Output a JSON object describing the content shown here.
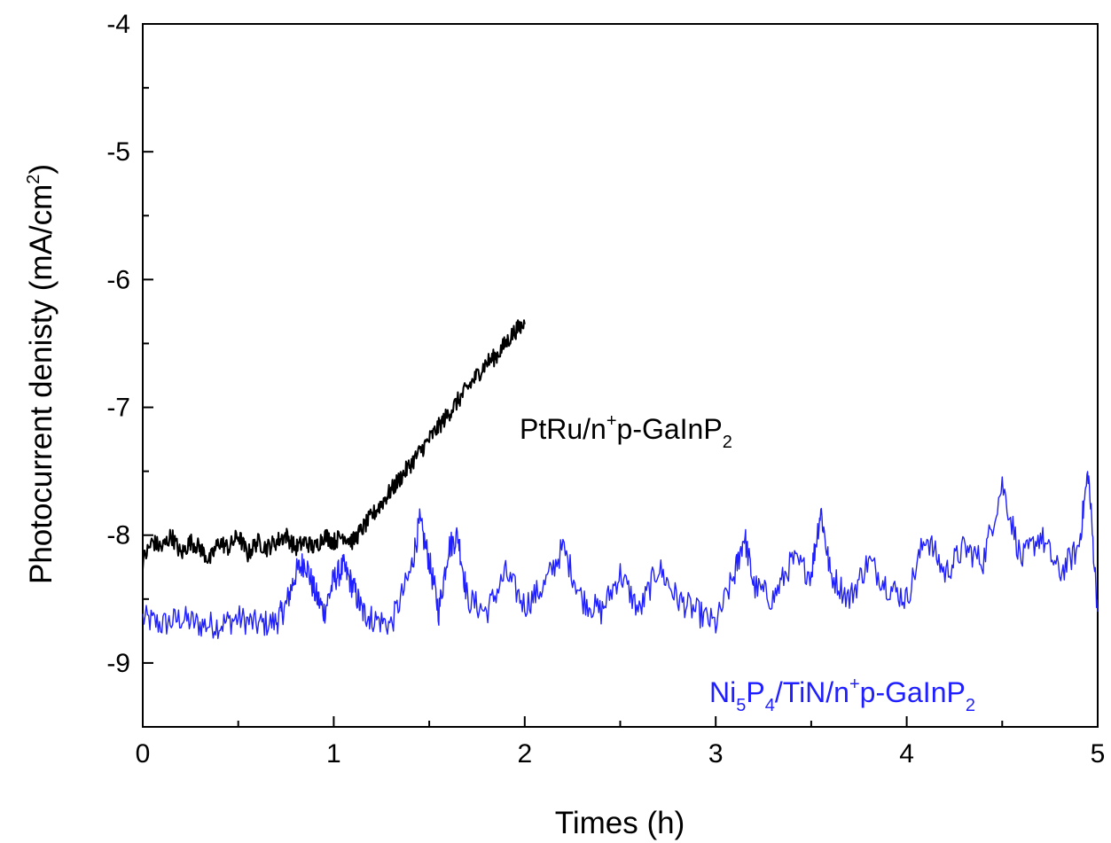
{
  "chart_data": {
    "type": "line",
    "xlabel": "Times (h)",
    "ylabel": "Photocurrent denisty (mA/cm²)",
    "ylabel_parts": {
      "main": "Photocurrent denisty (mA/cm",
      "sup": "2",
      "end": ")"
    },
    "xlim": [
      0,
      5
    ],
    "ylim": [
      -9.5,
      -4
    ],
    "x_ticks": [
      "0",
      "1",
      "2",
      "3",
      "4",
      "5"
    ],
    "y_ticks": [
      "-4",
      "-5",
      "-6",
      "-7",
      "-8",
      "-9"
    ],
    "grid": false,
    "series": [
      {
        "name": "PtRu/n+p-GaInP2",
        "label_parts": {
          "a": "PtRu/n",
          "sup": "+",
          "b": "p-GaInP",
          "sub": "2"
        },
        "color": "#000000",
        "x": [
          0,
          0.05,
          0.1,
          0.15,
          0.2,
          0.25,
          0.3,
          0.35,
          0.4,
          0.45,
          0.5,
          0.55,
          0.6,
          0.65,
          0.7,
          0.75,
          0.8,
          0.85,
          0.9,
          0.95,
          1.0,
          1.05,
          1.1,
          1.15,
          1.2,
          1.25,
          1.3,
          1.35,
          1.4,
          1.45,
          1.5,
          1.55,
          1.6,
          1.65,
          1.7,
          1.75,
          1.8,
          1.85,
          1.9,
          1.95,
          2.0
        ],
        "y": [
          -8.2,
          -8.05,
          -8.1,
          -8.0,
          -8.15,
          -8.05,
          -8.1,
          -8.2,
          -8.05,
          -8.1,
          -8.0,
          -8.15,
          -8.05,
          -8.1,
          -8.05,
          -8.0,
          -8.1,
          -8.05,
          -8.1,
          -8.0,
          -8.05,
          -8.0,
          -8.05,
          -7.95,
          -7.85,
          -7.75,
          -7.65,
          -7.55,
          -7.45,
          -7.35,
          -7.25,
          -7.15,
          -7.05,
          -6.95,
          -6.85,
          -6.75,
          -6.65,
          -6.6,
          -6.5,
          -6.4,
          -6.35
        ]
      },
      {
        "name": "Ni5P4/TiN/n+p-GaInP2",
        "label_parts": {
          "a": "Ni",
          "sub1": "5",
          "b": "P",
          "sub2": "4",
          "c": "/TiN/n",
          "sup": "+",
          "d": "p-GaInP",
          "sub3": "2"
        },
        "color": "#1f1fff",
        "x": [
          0,
          0.1,
          0.2,
          0.3,
          0.4,
          0.5,
          0.6,
          0.7,
          0.75,
          0.8,
          0.85,
          0.9,
          0.95,
          1.0,
          1.05,
          1.1,
          1.15,
          1.2,
          1.3,
          1.4,
          1.45,
          1.5,
          1.55,
          1.6,
          1.65,
          1.7,
          1.8,
          1.9,
          2.0,
          2.1,
          2.2,
          2.3,
          2.4,
          2.5,
          2.6,
          2.7,
          2.8,
          2.9,
          3.0,
          3.1,
          3.15,
          3.2,
          3.3,
          3.4,
          3.5,
          3.55,
          3.6,
          3.7,
          3.8,
          3.9,
          4.0,
          4.1,
          4.2,
          4.3,
          4.4,
          4.5,
          4.6,
          4.7,
          4.8,
          4.9,
          4.95,
          5.0
        ],
        "y": [
          -8.65,
          -8.7,
          -8.65,
          -8.7,
          -8.7,
          -8.65,
          -8.7,
          -8.68,
          -8.55,
          -8.3,
          -8.2,
          -8.45,
          -8.6,
          -8.35,
          -8.25,
          -8.4,
          -8.6,
          -8.65,
          -8.7,
          -8.3,
          -7.9,
          -8.2,
          -8.6,
          -8.1,
          -8.0,
          -8.5,
          -8.6,
          -8.3,
          -8.55,
          -8.4,
          -8.1,
          -8.5,
          -8.6,
          -8.3,
          -8.6,
          -8.25,
          -8.5,
          -8.6,
          -8.7,
          -8.3,
          -8.0,
          -8.4,
          -8.5,
          -8.2,
          -8.3,
          -7.8,
          -8.3,
          -8.5,
          -8.2,
          -8.4,
          -8.5,
          -8.0,
          -8.3,
          -8.1,
          -8.2,
          -7.6,
          -8.2,
          -8.0,
          -8.3,
          -8.1,
          -7.5,
          -8.6
        ]
      }
    ]
  }
}
